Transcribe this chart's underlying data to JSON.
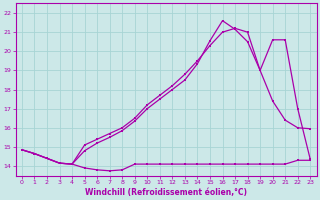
{
  "xlabel": "Windchill (Refroidissement éolien,°C)",
  "bg_color": "#cce8e8",
  "grid_color": "#a8d4d4",
  "line_color": "#aa00aa",
  "xlim": [
    -0.5,
    23.5
  ],
  "ylim": [
    13.5,
    22.5
  ],
  "xticks": [
    0,
    1,
    2,
    3,
    4,
    5,
    6,
    7,
    8,
    9,
    10,
    11,
    12,
    13,
    14,
    15,
    16,
    17,
    18,
    19,
    20,
    21,
    22,
    23
  ],
  "yticks": [
    14,
    15,
    16,
    17,
    18,
    19,
    20,
    21,
    22
  ],
  "s1_x": [
    0,
    1,
    2,
    3,
    4,
    5,
    6,
    7,
    8,
    9,
    10,
    11,
    12,
    13,
    14,
    15,
    16,
    17,
    18,
    19,
    20,
    21,
    22,
    23
  ],
  "s1_y": [
    14.85,
    14.65,
    14.4,
    14.15,
    14.1,
    13.9,
    13.8,
    13.75,
    13.8,
    14.1,
    14.1,
    14.1,
    14.1,
    14.1,
    14.1,
    14.1,
    14.1,
    14.1,
    14.1,
    14.1,
    14.1,
    14.1,
    14.3,
    14.3
  ],
  "s2_x": [
    0,
    1,
    2,
    3,
    4,
    5,
    6,
    7,
    8,
    9,
    10,
    11,
    12,
    13,
    14,
    15,
    16,
    17,
    18,
    19,
    20,
    21,
    22,
    23
  ],
  "s2_y": [
    14.85,
    14.65,
    14.4,
    14.15,
    14.1,
    15.1,
    15.4,
    15.7,
    16.0,
    16.5,
    17.2,
    17.7,
    18.2,
    18.8,
    19.5,
    20.3,
    21.0,
    21.2,
    21.0,
    19.0,
    20.6,
    20.6,
    17.0,
    14.35
  ],
  "s3_x": [
    0,
    1,
    2,
    3,
    4,
    5,
    6,
    7,
    8,
    9,
    10,
    11,
    12,
    13,
    14,
    15,
    16,
    17,
    18,
    19,
    20,
    21,
    22,
    23
  ],
  "s3_y": [
    14.85,
    14.65,
    14.4,
    14.15,
    14.1,
    14.8,
    15.2,
    15.5,
    15.85,
    16.35,
    17.0,
    17.5,
    18.0,
    18.5,
    19.35,
    20.55,
    21.6,
    21.15,
    20.5,
    19.0,
    17.4,
    16.4,
    16.0,
    15.95
  ]
}
